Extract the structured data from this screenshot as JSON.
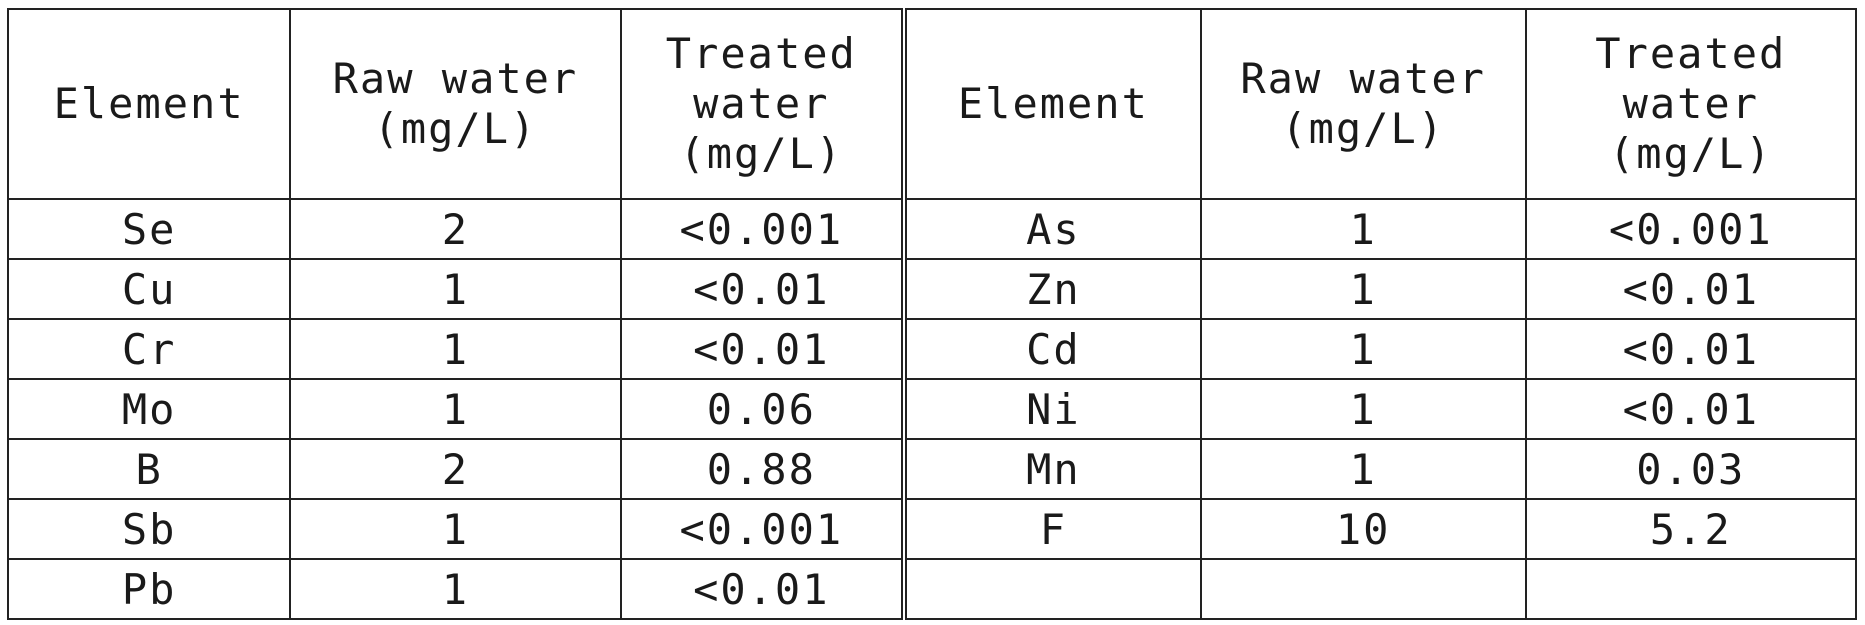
{
  "table": {
    "headers": [
      [
        "Element"
      ],
      [
        "Raw water",
        "(mg/L)"
      ],
      [
        "Treated",
        "water",
        "(mg/L)"
      ],
      [
        "Element"
      ],
      [
        "Raw water",
        "(mg/L)"
      ],
      [
        "Treated",
        "water",
        "(mg/L)"
      ]
    ],
    "rows": [
      [
        "Se",
        "2",
        "<0.001",
        "As",
        "1",
        "<0.001"
      ],
      [
        "Cu",
        "1",
        "<0.01",
        "Zn",
        "1",
        "<0.01"
      ],
      [
        "Cr",
        "1",
        "<0.01",
        "Cd",
        "1",
        "<0.01"
      ],
      [
        "Mo",
        "1",
        "0.06",
        "Ni",
        "1",
        "<0.01"
      ],
      [
        "B",
        "2",
        "0.88",
        "Mn",
        "1",
        "0.03"
      ],
      [
        "Sb",
        "1",
        "<0.001",
        "F",
        "10",
        "5.2"
      ],
      [
        "Pb",
        "1",
        "<0.01",
        "",
        "",
        ""
      ]
    ]
  }
}
